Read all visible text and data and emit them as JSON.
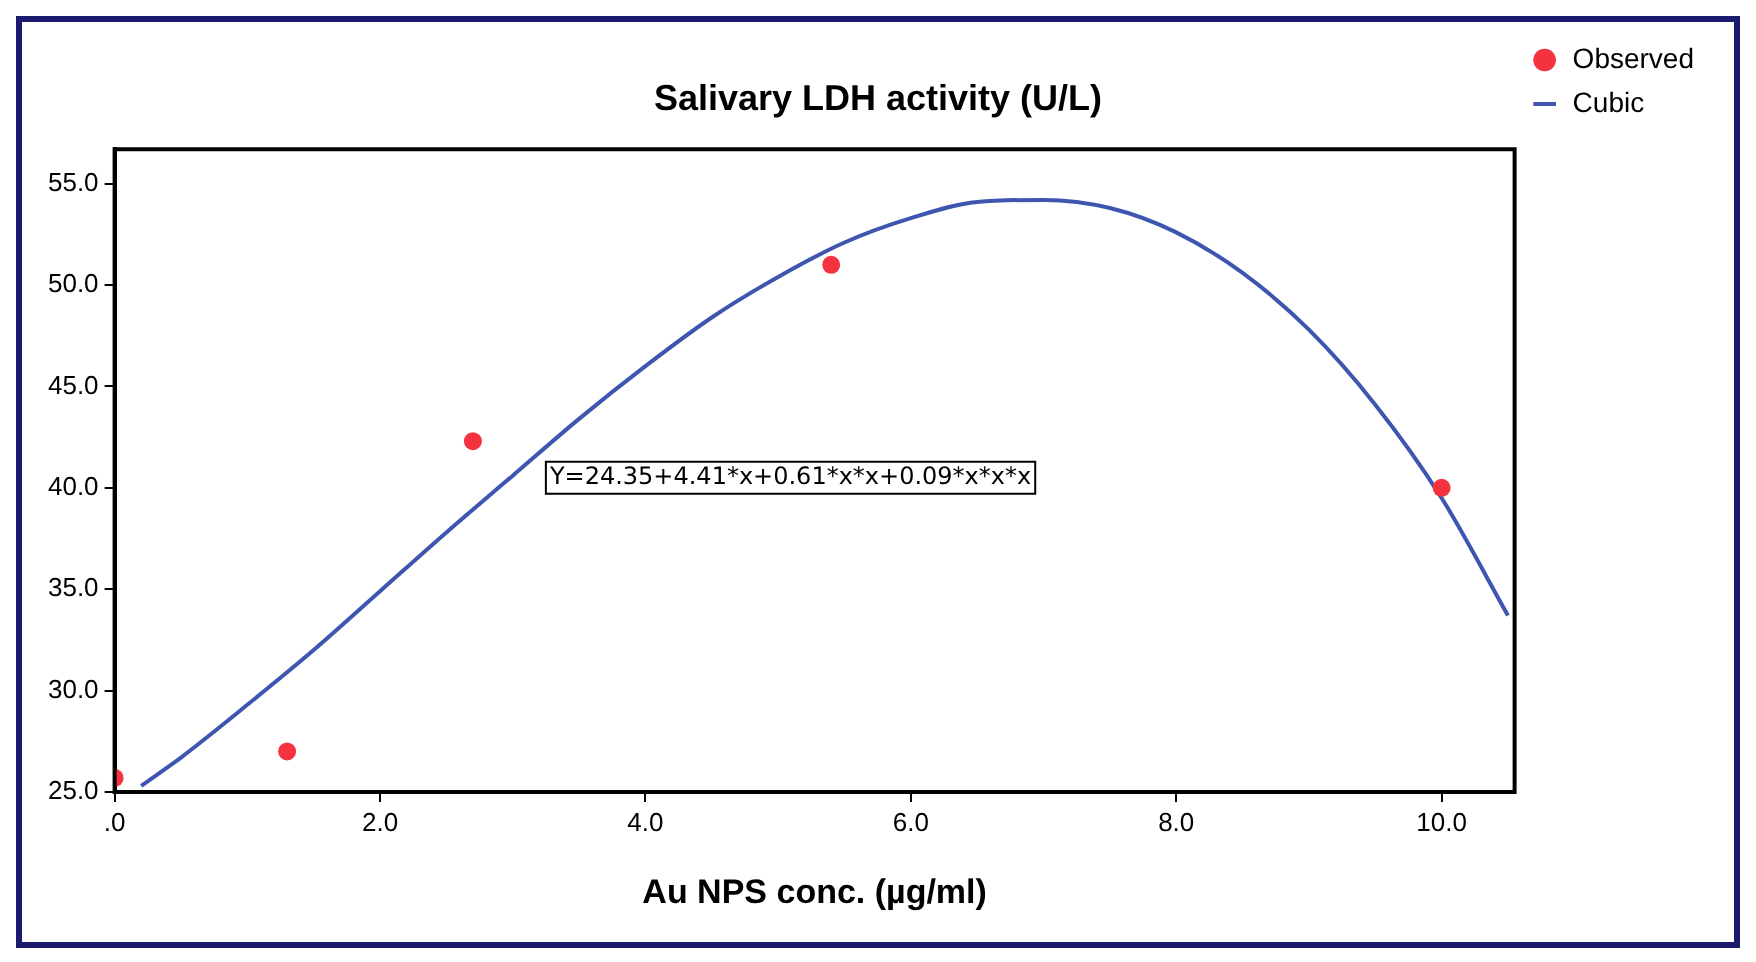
{
  "chart_data": {
    "type": "scatter",
    "title": "Salivary LDH activity (U/L)",
    "xlabel": "Au NPS conc. (µg/ml)",
    "xlim": [
      0,
      10.55
    ],
    "ylim": [
      25,
      56.7
    ],
    "xticks": [
      {
        "value": 0,
        "label": ".0"
      },
      {
        "value": 2,
        "label": "2.0"
      },
      {
        "value": 4,
        "label": "4.0"
      },
      {
        "value": 6,
        "label": "6.0"
      },
      {
        "value": 8,
        "label": "8.0"
      },
      {
        "value": 10,
        "label": "10.0"
      }
    ],
    "yticks": [
      {
        "value": 25,
        "label": "25.0"
      },
      {
        "value": 30,
        "label": "30.0"
      },
      {
        "value": 35,
        "label": "35.0"
      },
      {
        "value": 40,
        "label": "40.0"
      },
      {
        "value": 45,
        "label": "45.0"
      },
      {
        "value": 50,
        "label": "50.0"
      },
      {
        "value": 55,
        "label": "55.0"
      }
    ],
    "grid": false,
    "legend": "top right",
    "annotations": [
      "Y=24.35+4.41*x+0.61*x*x+0.09*x*x*x"
    ],
    "series": [
      {
        "name": "Observed",
        "marker": "circle",
        "color": "#f5333f",
        "x": [
          0,
          1.3,
          2.7,
          5.4,
          10
        ],
        "values": [
          25.7,
          27.0,
          42.3,
          51.0,
          40.0
        ]
      },
      {
        "name": "Cubic",
        "type": "line",
        "marker": "none",
        "color": "#3f56b0",
        "x": [
          0.2,
          0.5,
          1,
          1.5,
          2,
          2.5,
          3,
          3.5,
          4,
          4.5,
          5,
          5.5,
          6,
          6.5,
          7,
          7.5,
          8,
          8.5,
          9,
          9.5,
          10,
          10.5
        ],
        "values": [
          25.3,
          26.7,
          29.3,
          32.0,
          34.9,
          37.8,
          40.6,
          43.4,
          46.0,
          48.4,
          50.4,
          52.1,
          53.3,
          54.1,
          54.2,
          53.8,
          52.6,
          50.6,
          47.8,
          44.1,
          39.5,
          33.7
        ]
      }
    ]
  }
}
